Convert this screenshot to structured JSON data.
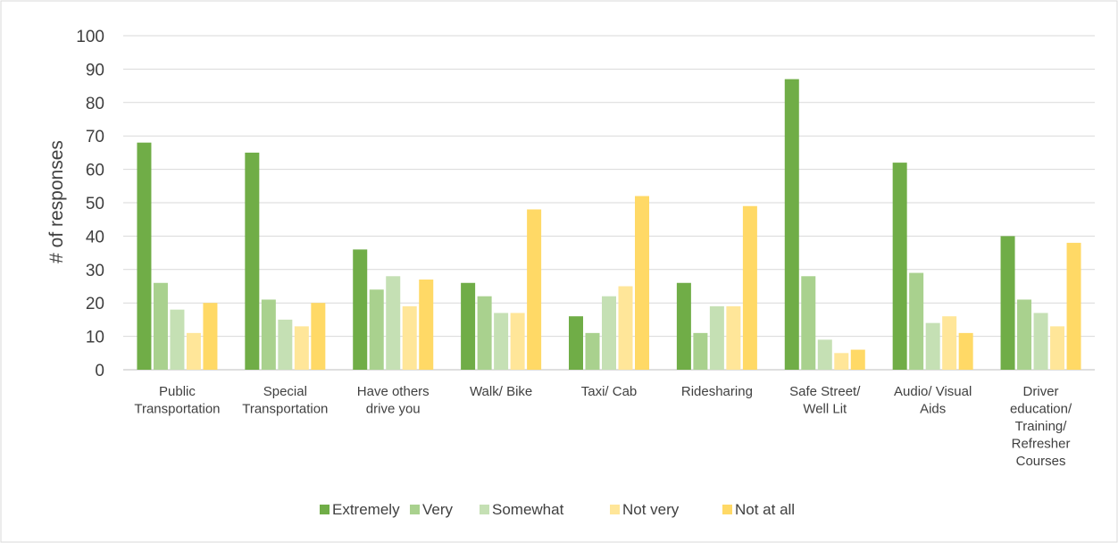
{
  "chart_data": {
    "type": "bar",
    "title": "",
    "xlabel": "",
    "ylabel": "# of responses",
    "ylim": [
      0,
      100
    ],
    "yticks": [
      "0",
      "10",
      "20",
      "30",
      "40",
      "50",
      "60",
      "70",
      "80",
      "90",
      "100"
    ],
    "grid": "horizontal",
    "legend_position": "bottom",
    "categories": [
      [
        "Public",
        "Transportation"
      ],
      [
        "Special",
        "Transportation"
      ],
      [
        "Have others",
        "drive you"
      ],
      [
        "Walk/ Bike"
      ],
      [
        "Taxi/ Cab"
      ],
      [
        "Ridesharing"
      ],
      [
        "Safe Street/",
        "Well Lit"
      ],
      [
        "Audio/ Visual",
        "Aids"
      ],
      [
        "Driver",
        "education/",
        "Training/",
        "Refresher",
        "Courses"
      ]
    ],
    "series": [
      {
        "name": "Extremely",
        "color": "#70AD47",
        "values": [
          68,
          65,
          36,
          26,
          16,
          26,
          87,
          62,
          40
        ]
      },
      {
        "name": "Very",
        "color": "#A9D18E",
        "values": [
          26,
          21,
          24,
          22,
          11,
          11,
          28,
          29,
          21
        ]
      },
      {
        "name": "Somewhat",
        "color": "#C5E0B4",
        "values": [
          18,
          15,
          28,
          17,
          22,
          19,
          9,
          14,
          17
        ]
      },
      {
        "name": "Not very",
        "color": "#FFE699",
        "values": [
          11,
          13,
          19,
          17,
          25,
          19,
          5,
          16,
          13
        ]
      },
      {
        "name": "Not at all",
        "color": "#FFD966",
        "values": [
          20,
          20,
          27,
          48,
          52,
          49,
          6,
          11,
          38
        ]
      }
    ]
  }
}
